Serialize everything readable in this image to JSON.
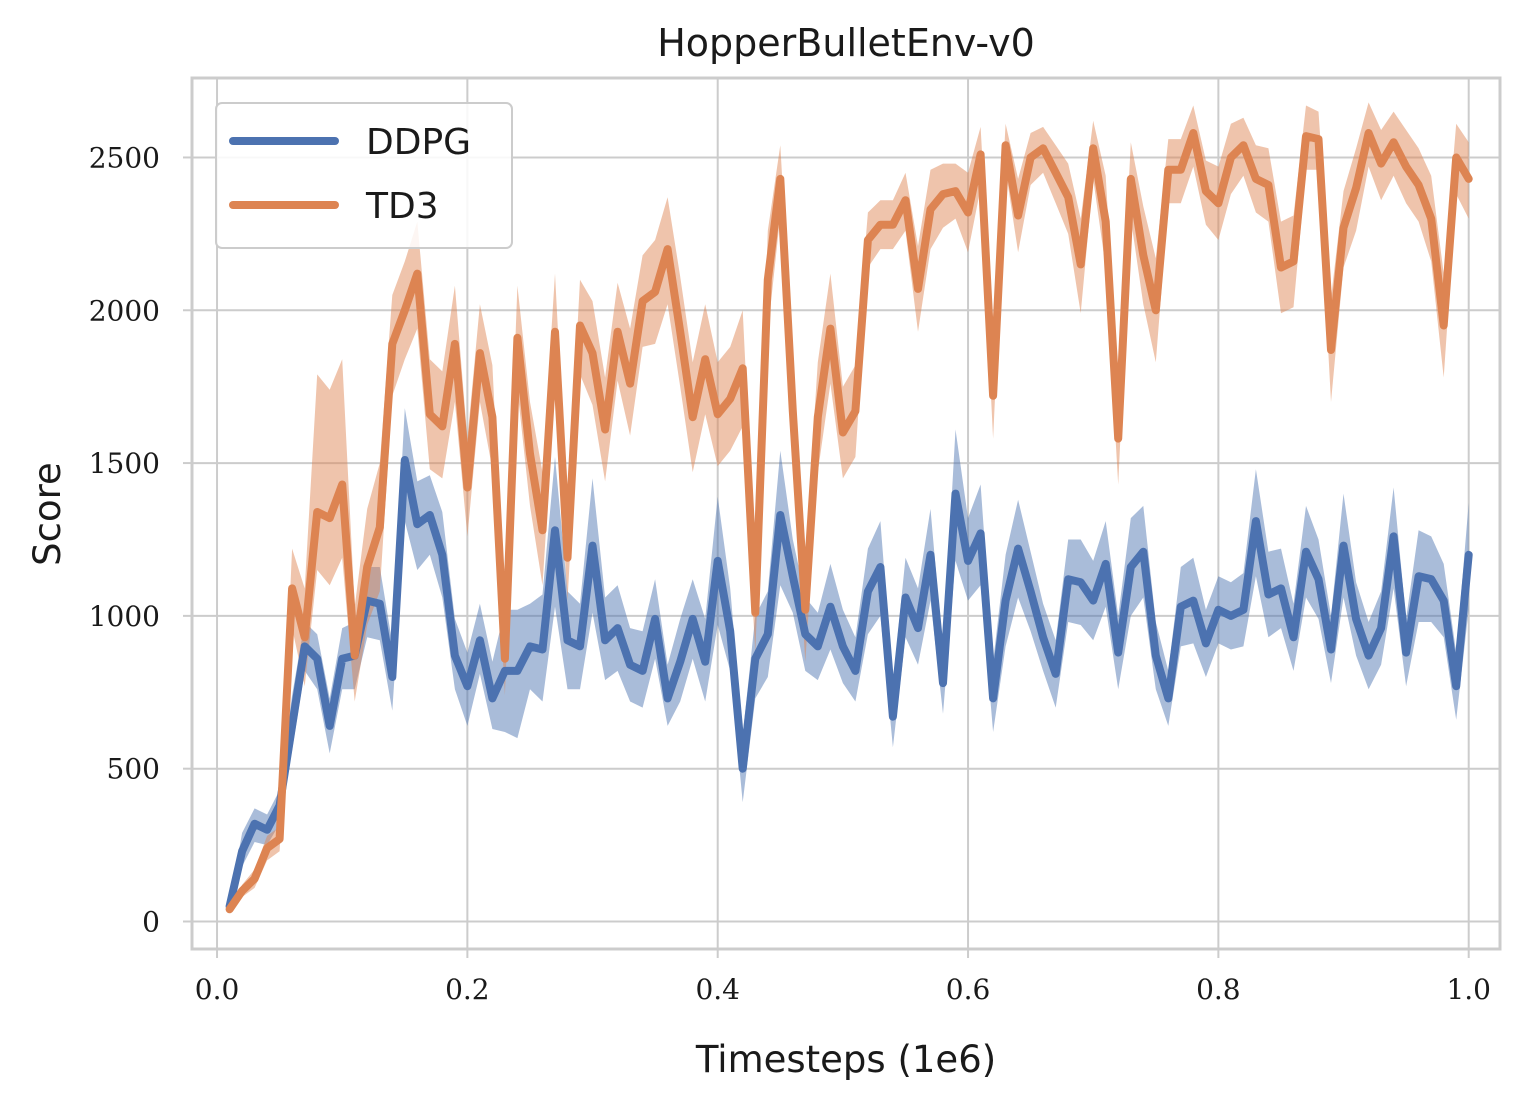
{
  "chart_data": {
    "type": "line",
    "title": "HopperBulletEnv-v0",
    "xlabel": "Timesteps (1e6)",
    "ylabel": "Score",
    "xlim": [
      -0.02,
      1.025
    ],
    "ylim": [
      -90,
      2760
    ],
    "xticks": [
      0.0,
      0.2,
      0.4,
      0.6,
      0.8,
      1.0
    ],
    "xtick_labels": [
      "0.0",
      "0.2",
      "0.4",
      "0.6",
      "0.8",
      "1.0"
    ],
    "yticks": [
      0,
      500,
      1000,
      1500,
      2000,
      2500
    ],
    "ytick_labels": [
      "0",
      "500",
      "1000",
      "1500",
      "2000",
      "2500"
    ],
    "grid": true,
    "legend_position": "upper-left",
    "x": [
      0.01,
      0.02,
      0.03,
      0.04,
      0.05,
      0.06,
      0.07,
      0.08,
      0.09,
      0.1,
      0.11,
      0.12,
      0.13,
      0.14,
      0.15,
      0.16,
      0.17,
      0.18,
      0.19,
      0.2,
      0.21,
      0.22,
      0.23,
      0.24,
      0.25,
      0.26,
      0.27,
      0.28,
      0.29,
      0.3,
      0.31,
      0.32,
      0.33,
      0.34,
      0.35,
      0.36,
      0.37,
      0.38,
      0.39,
      0.4,
      0.41,
      0.42,
      0.43,
      0.44,
      0.45,
      0.46,
      0.47,
      0.48,
      0.49,
      0.5,
      0.51,
      0.52,
      0.53,
      0.54,
      0.55,
      0.56,
      0.57,
      0.58,
      0.59,
      0.6,
      0.61,
      0.62,
      0.63,
      0.64,
      0.65,
      0.66,
      0.67,
      0.68,
      0.69,
      0.7,
      0.71,
      0.72,
      0.73,
      0.74,
      0.75,
      0.76,
      0.77,
      0.78,
      0.79,
      0.8,
      0.81,
      0.82,
      0.83,
      0.84,
      0.85,
      0.86,
      0.87,
      0.88,
      0.89,
      0.9,
      0.91,
      0.92,
      0.93,
      0.94,
      0.95,
      0.96,
      0.97,
      0.98,
      0.99,
      1.0
    ],
    "series": [
      {
        "name": "DDPG",
        "color": "#4c72b0",
        "values": [
          50,
          230,
          320,
          300,
          380,
          640,
          900,
          860,
          640,
          860,
          870,
          1050,
          1040,
          800,
          1510,
          1300,
          1330,
          1200,
          870,
          770,
          920,
          730,
          820,
          820,
          900,
          890,
          1280,
          920,
          900,
          1230,
          920,
          960,
          840,
          820,
          990,
          730,
          850,
          990,
          850,
          1180,
          950,
          500,
          860,
          940,
          1330,
          1130,
          940,
          900,
          1030,
          900,
          820,
          1080,
          1160,
          670,
          1060,
          960,
          1200,
          780,
          1400,
          1180,
          1270,
          730,
          1050,
          1220,
          1080,
          930,
          810,
          1120,
          1110,
          1050,
          1170,
          880,
          1160,
          1210,
          870,
          730,
          1030,
          1050,
          910,
          1020,
          1000,
          1020,
          1310,
          1070,
          1090,
          930,
          1210,
          1120,
          890,
          1230,
          990,
          870,
          960,
          1260,
          880,
          1130,
          1120,
          1050,
          770,
          1200
        ],
        "lower": [
          40,
          180,
          260,
          250,
          320,
          560,
          820,
          760,
          550,
          760,
          760,
          930,
          920,
          690,
          1310,
          1150,
          1200,
          1060,
          760,
          640,
          810,
          630,
          620,
          600,
          760,
          720,
          1030,
          760,
          760,
          1010,
          790,
          820,
          720,
          700,
          860,
          640,
          720,
          860,
          720,
          970,
          820,
          390,
          730,
          800,
          1100,
          1010,
          820,
          790,
          890,
          780,
          720,
          940,
          1000,
          570,
          930,
          840,
          1050,
          680,
          1180,
          1050,
          1100,
          620,
          900,
          1060,
          950,
          820,
          700,
          980,
          970,
          920,
          1030,
          760,
          1000,
          1060,
          760,
          640,
          900,
          910,
          800,
          910,
          890,
          900,
          1130,
          930,
          960,
          820,
          1060,
          990,
          780,
          1060,
          870,
          760,
          840,
          1090,
          770,
          980,
          980,
          930,
          660,
          1020
        ],
        "upper": [
          60,
          290,
          370,
          350,
          430,
          740,
          980,
          940,
          730,
          960,
          980,
          1160,
          1160,
          910,
          1680,
          1440,
          1460,
          1340,
          990,
          880,
          1040,
          850,
          1020,
          1020,
          1040,
          1070,
          1520,
          1080,
          1040,
          1450,
          1060,
          1100,
          960,
          950,
          1120,
          840,
          990,
          1120,
          990,
          1390,
          1090,
          610,
          1000,
          1080,
          1540,
          1250,
          1060,
          1010,
          1170,
          1020,
          930,
          1220,
          1310,
          780,
          1190,
          1090,
          1350,
          880,
          1610,
          1320,
          1430,
          850,
          1200,
          1380,
          1210,
          1040,
          920,
          1250,
          1250,
          1180,
          1310,
          1000,
          1320,
          1360,
          980,
          820,
          1160,
          1190,
          1020,
          1130,
          1110,
          1140,
          1480,
          1210,
          1220,
          1040,
          1360,
          1250,
          1000,
          1400,
          1110,
          980,
          1080,
          1420,
          990,
          1280,
          1260,
          1170,
          880,
          1370
        ]
      },
      {
        "name": "TD3",
        "color": "#dd8452",
        "values": [
          40,
          100,
          140,
          240,
          270,
          1090,
          930,
          1340,
          1320,
          1430,
          870,
          1160,
          1290,
          1890,
          2000,
          2120,
          1660,
          1620,
          1890,
          1420,
          1860,
          1650,
          860,
          1910,
          1530,
          1280,
          1930,
          1190,
          1950,
          1860,
          1610,
          1930,
          1760,
          2030,
          2060,
          2200,
          1930,
          1650,
          1840,
          1660,
          1710,
          1810,
          1010,
          2100,
          2430,
          1670,
          1020,
          1650,
          1940,
          1600,
          1670,
          2230,
          2280,
          2280,
          2360,
          2070,
          2330,
          2380,
          2390,
          2320,
          2510,
          1720,
          2540,
          2310,
          2500,
          2530,
          2450,
          2370,
          2150,
          2530,
          2290,
          1580,
          2430,
          2180,
          2000,
          2460,
          2460,
          2580,
          2390,
          2350,
          2500,
          2540,
          2430,
          2410,
          2140,
          2160,
          2570,
          2560,
          1870,
          2270,
          2400,
          2580,
          2480,
          2550,
          2470,
          2410,
          2300,
          1950,
          2500,
          2430
        ],
        "lower": [
          30,
          80,
          110,
          200,
          230,
          960,
          770,
          1150,
          1100,
          1190,
          720,
          970,
          1080,
          1720,
          1840,
          1940,
          1480,
          1450,
          1700,
          1260,
          1700,
          1480,
          740,
          1740,
          1360,
          1100,
          1740,
          1050,
          1790,
          1690,
          1440,
          1770,
          1590,
          1880,
          1890,
          2020,
          1750,
          1470,
          1660,
          1490,
          1540,
          1620,
          880,
          1930,
          2310,
          1510,
          850,
          1470,
          1760,
          1450,
          1520,
          2140,
          2200,
          2200,
          2260,
          1930,
          2200,
          2270,
          2300,
          2190,
          2400,
          1580,
          2460,
          2190,
          2410,
          2450,
          2350,
          2250,
          1990,
          2430,
          2140,
          1430,
          2300,
          2020,
          1830,
          2350,
          2350,
          2470,
          2280,
          2230,
          2380,
          2440,
          2320,
          2290,
          1990,
          2010,
          2460,
          2460,
          1700,
          2140,
          2260,
          2470,
          2360,
          2440,
          2350,
          2290,
          2160,
          1780,
          2380,
          2300
        ],
        "upper": [
          50,
          120,
          170,
          280,
          310,
          1220,
          1090,
          1790,
          1740,
          1840,
          1030,
          1350,
          1500,
          2050,
          2160,
          2290,
          1840,
          1800,
          2080,
          1580,
          2020,
          1820,
          980,
          2080,
          1700,
          1470,
          2120,
          1330,
          2100,
          2030,
          1780,
          2090,
          1940,
          2180,
          2230,
          2370,
          2110,
          1830,
          2020,
          1830,
          1880,
          2000,
          1150,
          2260,
          2540,
          1830,
          1200,
          1830,
          2120,
          1750,
          1820,
          2320,
          2360,
          2360,
          2450,
          2210,
          2460,
          2480,
          2480,
          2450,
          2600,
          1860,
          2610,
          2430,
          2580,
          2600,
          2540,
          2480,
          2300,
          2620,
          2440,
          1730,
          2550,
          2340,
          2170,
          2560,
          2560,
          2670,
          2490,
          2470,
          2610,
          2630,
          2540,
          2530,
          2290,
          2310,
          2670,
          2650,
          2040,
          2390,
          2530,
          2680,
          2590,
          2650,
          2590,
          2530,
          2440,
          2120,
          2610,
          2550
        ]
      }
    ]
  }
}
